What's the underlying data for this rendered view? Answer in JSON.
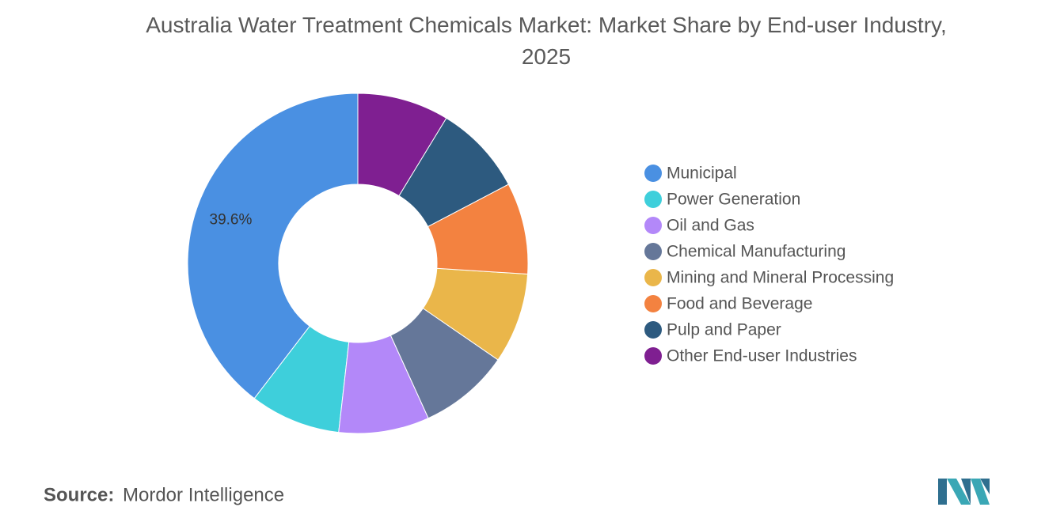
{
  "chart_data": {
    "type": "donut",
    "title": "Australia Water Treatment Chemicals Market: Market Share by End-user Industry, 2025",
    "categories": [
      "Municipal",
      "Power Generation",
      "Oil and Gas",
      "Chemical Manufacturing",
      "Mining and Mineral Processing",
      "Food and Beverage",
      "Pulp and Paper",
      "Other End-user Industries"
    ],
    "values": [
      39.6,
      8.6,
      8.6,
      8.6,
      8.6,
      8.7,
      8.6,
      8.7
    ],
    "value_labels": [
      "39.6%",
      null,
      null,
      null,
      null,
      null,
      null,
      null
    ],
    "colors": [
      "#4a90e2",
      "#3ecfdb",
      "#b388f9",
      "#657799",
      "#eab64a",
      "#f38240",
      "#2d5a7f",
      "#7f1f91"
    ],
    "legend": "right",
    "source_label": "Source:",
    "source": "Mordor Intelligence"
  }
}
